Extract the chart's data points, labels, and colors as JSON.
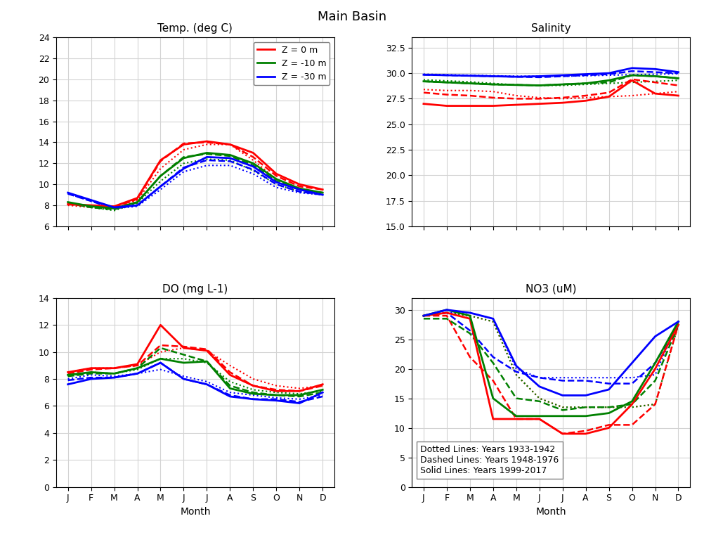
{
  "title": "Main Basin",
  "months": [
    "J",
    "F",
    "M",
    "A",
    "M",
    "J",
    "J",
    "A",
    "S",
    "O",
    "N",
    "D"
  ],
  "temp": {
    "title": "Temp. (deg C)",
    "ylim": [
      6,
      24
    ],
    "yticks": [
      6,
      8,
      10,
      12,
      14,
      16,
      18,
      20,
      22,
      24
    ],
    "dotted": {
      "red": [
        8.0,
        7.8,
        7.7,
        8.5,
        11.5,
        13.3,
        13.8,
        13.8,
        12.3,
        10.5,
        9.5,
        9.2
      ],
      "green": [
        8.2,
        7.8,
        7.5,
        8.2,
        10.3,
        12.0,
        12.4,
        12.3,
        11.3,
        10.0,
        9.3,
        9.0
      ],
      "blue": [
        9.1,
        8.4,
        7.7,
        7.9,
        9.5,
        11.2,
        11.8,
        11.8,
        11.0,
        9.7,
        9.2,
        9.0
      ]
    },
    "dashed": {
      "red": [
        8.1,
        7.9,
        7.8,
        8.6,
        12.2,
        13.9,
        14.0,
        13.8,
        12.6,
        10.8,
        9.8,
        9.5
      ],
      "green": [
        8.2,
        7.8,
        7.6,
        8.3,
        10.8,
        12.6,
        12.9,
        12.7,
        11.8,
        10.3,
        9.5,
        9.2
      ],
      "blue": [
        9.1,
        8.4,
        7.7,
        8.0,
        9.8,
        11.6,
        12.3,
        12.2,
        11.4,
        10.0,
        9.3,
        9.0
      ]
    },
    "solid": {
      "red": [
        8.1,
        8.0,
        7.9,
        8.7,
        12.3,
        13.8,
        14.1,
        13.8,
        13.0,
        11.0,
        10.0,
        9.5
      ],
      "green": [
        8.3,
        7.9,
        7.7,
        8.3,
        10.8,
        12.5,
        13.0,
        12.8,
        12.0,
        10.5,
        9.6,
        9.2
      ],
      "blue": [
        9.2,
        8.5,
        7.8,
        8.0,
        9.8,
        11.5,
        12.6,
        12.5,
        11.7,
        10.2,
        9.5,
        9.0
      ]
    }
  },
  "salinity": {
    "title": "Salinity",
    "ylim": [
      15.0,
      33.5
    ],
    "yticks": [
      15.0,
      17.5,
      20.0,
      22.5,
      25.0,
      27.5,
      30.0,
      32.5
    ],
    "dotted": {
      "red": [
        28.4,
        28.3,
        28.3,
        28.2,
        27.8,
        27.6,
        27.5,
        27.6,
        27.7,
        27.8,
        28.0,
        28.2
      ],
      "green": [
        29.35,
        29.25,
        29.15,
        29.0,
        28.85,
        28.8,
        28.8,
        28.9,
        29.0,
        29.1,
        29.2,
        29.3
      ],
      "blue": [
        29.9,
        29.85,
        29.8,
        29.75,
        29.7,
        29.7,
        29.7,
        29.75,
        29.8,
        29.85,
        29.9,
        29.95
      ]
    },
    "dashed": {
      "red": [
        28.1,
        27.9,
        27.8,
        27.6,
        27.5,
        27.5,
        27.6,
        27.8,
        28.1,
        29.4,
        29.1,
        28.8
      ],
      "green": [
        29.2,
        29.1,
        29.0,
        28.9,
        28.85,
        28.8,
        28.9,
        29.0,
        29.1,
        29.8,
        29.7,
        29.5
      ],
      "blue": [
        29.85,
        29.8,
        29.75,
        29.7,
        29.65,
        29.6,
        29.7,
        29.8,
        29.9,
        30.2,
        30.1,
        30.0
      ]
    },
    "solid": {
      "red": [
        27.0,
        26.8,
        26.8,
        26.8,
        26.9,
        27.0,
        27.1,
        27.3,
        27.7,
        29.3,
        28.0,
        27.8
      ],
      "green": [
        29.2,
        29.1,
        29.0,
        28.9,
        28.85,
        28.8,
        28.9,
        29.0,
        29.3,
        29.8,
        29.7,
        29.5
      ],
      "blue": [
        29.85,
        29.8,
        29.75,
        29.7,
        29.65,
        29.7,
        29.8,
        29.9,
        30.0,
        30.5,
        30.4,
        30.1
      ]
    }
  },
  "do": {
    "title": "DO (mg L-1)",
    "ylim": [
      0,
      14
    ],
    "yticks": [
      0,
      2,
      4,
      6,
      8,
      10,
      12,
      14
    ],
    "dotted": {
      "red": [
        8.5,
        8.8,
        8.8,
        9.0,
        10.0,
        10.3,
        10.1,
        9.0,
        8.0,
        7.5,
        7.3,
        7.5
      ],
      "green": [
        8.2,
        8.5,
        8.4,
        8.7,
        9.5,
        9.5,
        9.2,
        7.8,
        7.2,
        7.0,
        6.9,
        7.1
      ],
      "blue": [
        8.0,
        8.3,
        8.2,
        8.4,
        8.7,
        8.2,
        7.8,
        7.0,
        6.8,
        6.6,
        6.5,
        6.8
      ]
    },
    "dashed": {
      "red": [
        8.4,
        8.7,
        8.8,
        9.0,
        10.5,
        10.4,
        10.2,
        8.5,
        7.5,
        7.2,
        7.1,
        7.5
      ],
      "green": [
        8.2,
        8.4,
        8.4,
        8.8,
        10.3,
        9.8,
        9.3,
        7.5,
        7.0,
        6.8,
        6.7,
        7.0
      ],
      "blue": [
        7.9,
        8.1,
        8.1,
        8.4,
        9.2,
        8.0,
        7.6,
        6.8,
        6.5,
        6.5,
        6.3,
        6.7
      ]
    },
    "solid": {
      "red": [
        8.5,
        8.8,
        8.8,
        9.1,
        12.0,
        10.3,
        10.1,
        8.3,
        7.5,
        7.1,
        7.1,
        7.6
      ],
      "green": [
        8.3,
        8.5,
        8.4,
        8.8,
        9.5,
        9.2,
        9.3,
        7.3,
        6.9,
        6.8,
        6.8,
        7.2
      ],
      "blue": [
        7.6,
        8.0,
        8.1,
        8.4,
        9.2,
        8.0,
        7.6,
        6.7,
        6.5,
        6.4,
        6.2,
        7.0
      ]
    }
  },
  "no3": {
    "title": "NO3 (uM)",
    "ylim": [
      0,
      32
    ],
    "yticks": [
      0,
      5,
      10,
      15,
      20,
      25,
      30
    ],
    "legend_text": [
      "Dotted Lines: Years 1933-1942",
      "Dashed Lines: Years 1948-1976",
      "Solid Lines: Years 1999-2017"
    ],
    "dotted": {
      "red": [
        29.0,
        29.5,
        29.0,
        28.0,
        19.0,
        15.0,
        13.5,
        13.5,
        13.5,
        13.5,
        14.0,
        27.5
      ],
      "green": [
        29.0,
        29.5,
        29.0,
        28.0,
        19.0,
        15.0,
        13.5,
        13.5,
        13.5,
        13.5,
        14.0,
        27.5
      ],
      "blue": [
        29.0,
        29.5,
        29.5,
        28.5,
        20.0,
        18.5,
        18.5,
        18.5,
        18.5,
        18.5,
        19.0,
        28.0
      ]
    },
    "dashed": {
      "red": [
        29.0,
        29.0,
        22.0,
        18.0,
        11.5,
        11.5,
        9.0,
        9.5,
        10.5,
        10.5,
        14.0,
        27.5
      ],
      "green": [
        28.5,
        28.5,
        26.0,
        21.0,
        15.0,
        14.5,
        13.0,
        13.5,
        13.5,
        14.0,
        18.0,
        27.5
      ],
      "blue": [
        29.0,
        29.5,
        26.5,
        22.0,
        19.5,
        18.5,
        18.0,
        18.0,
        17.5,
        17.5,
        21.0,
        27.5
      ]
    },
    "solid": {
      "red": [
        29.0,
        29.5,
        28.5,
        11.5,
        11.5,
        11.5,
        9.0,
        9.0,
        10.0,
        14.0,
        20.0,
        27.5
      ],
      "green": [
        29.0,
        30.0,
        29.0,
        15.0,
        12.0,
        12.0,
        12.0,
        12.0,
        12.5,
        14.5,
        21.0,
        28.0
      ],
      "blue": [
        29.0,
        30.0,
        29.5,
        28.5,
        20.5,
        17.0,
        15.5,
        15.5,
        16.5,
        21.0,
        25.5,
        28.0
      ]
    }
  },
  "colors": {
    "red": "#ff0000",
    "green": "#008000",
    "blue": "#0000ff"
  }
}
